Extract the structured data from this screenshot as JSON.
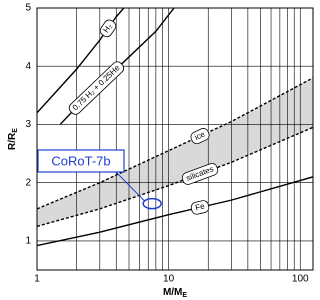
{
  "chart_data": {
    "type": "line",
    "x_label": {
      "text": "M/M",
      "sub": "E"
    },
    "y_label": {
      "text": "R/R",
      "sub": "E"
    },
    "xlog": true,
    "grid": true,
    "xlim": [
      1,
      125
    ],
    "xticks": [
      1,
      10,
      100
    ],
    "xminor": [
      2,
      3,
      4,
      5,
      6,
      7,
      8,
      9,
      20,
      30,
      40,
      50,
      60,
      70,
      80,
      90
    ],
    "ylim": [
      0.5,
      5
    ],
    "yticks": [
      1,
      2,
      3,
      4,
      5
    ],
    "fill_between": [
      "ice",
      "silicates"
    ],
    "fill_color": "#d9d9d9",
    "series": [
      {
        "name": "H₂",
        "color": "#000000",
        "dash": false,
        "x": [
          1,
          2,
          3,
          4,
          5
        ],
        "values": [
          3.2,
          3.95,
          4.45,
          4.85,
          5.1
        ]
      },
      {
        "name": "0.75 H₂ + 0.25He",
        "color": "#000000",
        "dash": false,
        "x": [
          1.5,
          2,
          4,
          8,
          11
        ],
        "values": [
          3.0,
          3.3,
          3.95,
          4.6,
          5.0
        ]
      },
      {
        "name": "ice",
        "color": "#000000",
        "dash": true,
        "x": [
          1,
          3,
          10,
          30,
          125
        ],
        "values": [
          1.55,
          2.0,
          2.55,
          3.05,
          3.8
        ]
      },
      {
        "name": "silicates",
        "color": "#000000",
        "dash": true,
        "x": [
          1,
          3,
          10,
          30,
          125
        ],
        "values": [
          1.25,
          1.55,
          1.95,
          2.35,
          2.95
        ]
      },
      {
        "name": "Fe",
        "color": "#000000",
        "dash": false,
        "x": [
          1,
          3,
          10,
          30,
          125
        ],
        "values": [
          0.92,
          1.15,
          1.45,
          1.7,
          2.1
        ]
      }
    ],
    "annotation": {
      "text": "CoRoT-7b",
      "color": "#1f3fd0",
      "x": 7.5,
      "y": 1.64
    }
  }
}
